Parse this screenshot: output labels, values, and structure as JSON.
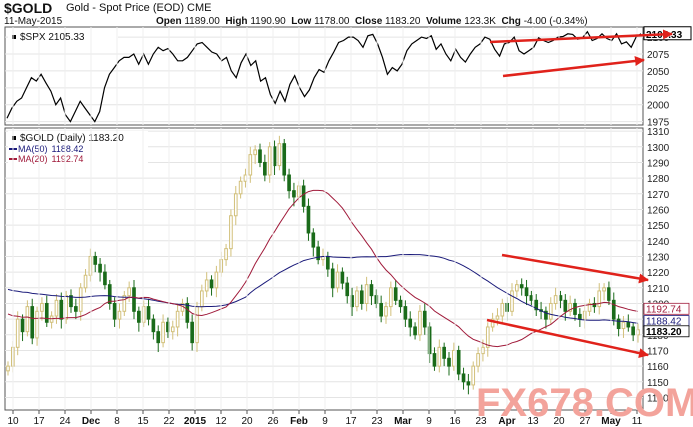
{
  "header": {
    "symbol": "$GOLD",
    "name": "Gold - Spot Price (EOD)",
    "exchange": "CME",
    "date": "11-May-2015",
    "open_label": "Open",
    "open": "1189.00",
    "high_label": "High",
    "high": "1190.90",
    "low_label": "Low",
    "low": "1178.00",
    "close_label": "Close",
    "close": "1183.20",
    "volume_label": "Volume",
    "volume": "123.3K",
    "chg_label": "Chg",
    "chg": "-4.00 (-0.34%)"
  },
  "colors": {
    "up_candle": "#d2c07a",
    "down_candle": "#1a6b1a",
    "ma50": "#1a1a7a",
    "ma20": "#a01a3a",
    "arrow": "#e0221b",
    "watermark": "#f3a39b",
    "grid": "#e4e4e4"
  },
  "watermark": "FX678.COM",
  "chart_data": [
    {
      "type": "line",
      "legend": "$SPX 2105.33",
      "last_value_label": "2105.33",
      "ylim": [
        1970,
        2115
      ],
      "y_ticks": [
        1975,
        2000,
        2025,
        2050,
        2075,
        2100
      ],
      "series": [
        {
          "name": "$SPX",
          "values": [
            1980,
            1995,
            2005,
            2010,
            2025,
            2040,
            2035,
            2045,
            2032,
            2020,
            2000,
            2010,
            1985,
            1975,
            1990,
            2005,
            1995,
            1985,
            1975,
            1990,
            2025,
            2045,
            2055,
            2065,
            2070,
            2070,
            2075,
            2060,
            2075,
            2060,
            2075,
            2085,
            2080,
            2083,
            2075,
            2065,
            2065,
            2070,
            2080,
            2090,
            2092,
            2085,
            2078,
            2075,
            2065,
            2070,
            2050,
            2040,
            2062,
            2075,
            2058,
            2065,
            2035,
            2040,
            2015,
            2002,
            2020,
            2005,
            2030,
            2043,
            2025,
            2012,
            2022,
            2040,
            2052,
            2048,
            2065,
            2078,
            2092,
            2095,
            2100,
            2100,
            2095,
            2085,
            2102,
            2104,
            2090,
            2070,
            2045,
            2055,
            2050,
            2060,
            2080,
            2090,
            2095,
            2100,
            2098,
            2102,
            2082,
            2090,
            2075,
            2065,
            2082,
            2070,
            2063,
            2075,
            2085,
            2090,
            2100,
            2097,
            2082,
            2072,
            2090,
            2092,
            2100,
            2080,
            2075,
            2080,
            2085,
            2099,
            2095,
            2092,
            2095,
            2100,
            2101,
            2105,
            2104,
            2097,
            2099,
            2108,
            2095,
            2098,
            2105,
            2098,
            2095,
            2105,
            2090,
            2093,
            2085,
            2100,
            2105
          ]
        }
      ]
    },
    {
      "type": "candlestick",
      "legend": "$GOLD (Daily) 1183.20",
      "ylim": [
        1132,
        1312
      ],
      "y_ticks": [
        1140,
        1150,
        1160,
        1170,
        1180,
        1190,
        1200,
        1210,
        1220,
        1230,
        1240,
        1250,
        1260,
        1270,
        1280,
        1290,
        1300,
        1310
      ],
      "x_ticks": [
        "10",
        "17",
        "24",
        "Dec",
        "8",
        "15",
        "22",
        "2015",
        "12",
        "20",
        "26",
        "Feb",
        "9",
        "17",
        "23",
        "Mar",
        "9",
        "16",
        "23",
        "Apr",
        "13",
        "20",
        "27",
        "May",
        "11"
      ],
      "last_value_labels": [
        "1192.74",
        "1188.42",
        "1183.20"
      ],
      "series": [
        {
          "name": "MA(50)",
          "value": "1188.42"
        },
        {
          "name": "MA(20)",
          "value": "1192.74"
        },
        {
          "name": "$GOLD",
          "close": [
            1160,
            1172,
            1190,
            1182,
            1198,
            1178,
            1195,
            1200,
            1188,
            1192,
            1202,
            1190,
            1205,
            1198,
            1195,
            1210,
            1218,
            1230,
            1225,
            1220,
            1212,
            1200,
            1190,
            1195,
            1205,
            1210,
            1195,
            1188,
            1198,
            1190,
            1182,
            1175,
            1188,
            1182,
            1185,
            1195,
            1200,
            1188,
            1175,
            1198,
            1208,
            1215,
            1210,
            1220,
            1228,
            1235,
            1256,
            1270,
            1278,
            1282,
            1295,
            1298,
            1290,
            1282,
            1300,
            1288,
            1302,
            1282,
            1272,
            1268,
            1275,
            1262,
            1245,
            1236,
            1228,
            1230,
            1222,
            1210,
            1220,
            1213,
            1205,
            1198,
            1208,
            1200,
            1212,
            1205,
            1200,
            1192,
            1198,
            1210,
            1202,
            1198,
            1190,
            1185,
            1180,
            1195,
            1185,
            1168,
            1160,
            1172,
            1165,
            1160,
            1170,
            1155,
            1150,
            1148,
            1160,
            1168,
            1172,
            1185,
            1190,
            1192,
            1200,
            1195,
            1208,
            1212,
            1210,
            1205,
            1202,
            1196,
            1195,
            1190,
            1200,
            1205,
            1202,
            1195,
            1200,
            1193,
            1190,
            1195,
            1200,
            1198,
            1208,
            1210,
            1202,
            1190,
            1184,
            1188,
            1185,
            1180,
            1183.2
          ]
        }
      ]
    }
  ]
}
